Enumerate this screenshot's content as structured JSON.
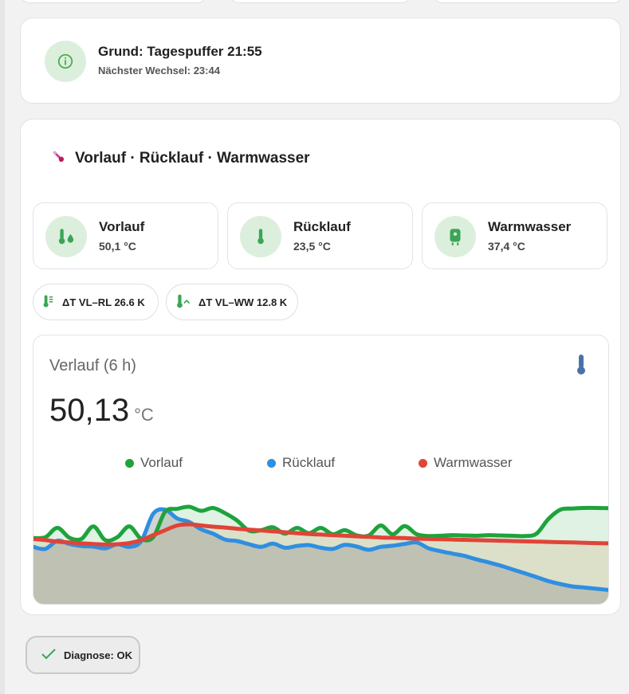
{
  "info": {
    "title": "Grund: Tagespuffer 21:55",
    "subtitle": "Nächster Wechsel: 23:44",
    "icon": "info-icon"
  },
  "section": {
    "title": "Vorlauf · Rücklauf · Warmwasser",
    "icon": "thermometer-icon"
  },
  "tiles": [
    {
      "name": "Vorlauf",
      "value": "50,1 °C",
      "icon": "thermometer-water-icon"
    },
    {
      "name": "Rücklauf",
      "value": "23,5 °C",
      "icon": "thermometer-icon"
    },
    {
      "name": "Warmwasser",
      "value": "37,4 °C",
      "icon": "water-boiler-icon"
    }
  ],
  "chips": [
    {
      "label": "ΔT VL–RL 26.6 K",
      "icon": "thermometer-lines-icon"
    },
    {
      "label": "ΔT VL–WW 12.8 K",
      "icon": "thermometer-chevron-icon"
    }
  ],
  "graph": {
    "title": "Verlauf (6 h)",
    "value": "50,13",
    "unit": "°C",
    "icon": "thermometer-icon"
  },
  "colors": {
    "accent_green": "#4caf50",
    "icon_bg": "#dcefdc",
    "vorlauf": "#1ea33c",
    "ruecklauf": "#2f8fe0",
    "warmwasser": "#e04438"
  },
  "chart_data": {
    "type": "area",
    "title": "Verlauf (6 h)",
    "xlabel": "",
    "ylabel": "",
    "legend_position": "top",
    "grid": false,
    "x": [
      0,
      1,
      2,
      3,
      4,
      5,
      6,
      7,
      8,
      9,
      10,
      11,
      12,
      13,
      14,
      15,
      16,
      17,
      18,
      19,
      20,
      21,
      22,
      23,
      24,
      25,
      26,
      27,
      28,
      29,
      30,
      31,
      32,
      33,
      34,
      35,
      36,
      37,
      38,
      39,
      40,
      41,
      42,
      43,
      44,
      45,
      46,
      47,
      48
    ],
    "series": [
      {
        "name": "Vorlauf",
        "color": "#1ea33c",
        "values": [
          37.5,
          37.8,
          41,
          37.6,
          37.2,
          41.5,
          36.8,
          37.8,
          41.5,
          37.2,
          37.8,
          46.5,
          47.5,
          48.2,
          46.8,
          47.8,
          46,
          43.5,
          40,
          40.2,
          41.2,
          39,
          41,
          39.2,
          41,
          38.8,
          40.2,
          38.4,
          38.4,
          41.8,
          38.8,
          41.6,
          38.8,
          38.2,
          38.3,
          38.5,
          38.4,
          38.3,
          38.5,
          38.4,
          38.3,
          38.2,
          39,
          44,
          47.2,
          47.6,
          47.8,
          47.8,
          47.7
        ]
      },
      {
        "name": "Rücklauf",
        "color": "#2f8fe0",
        "values": [
          34.5,
          33.8,
          36.6,
          35.5,
          34.8,
          34.6,
          34,
          35.4,
          34.5,
          36.5,
          45.8,
          47.2,
          44.2,
          43,
          40.5,
          39,
          37,
          36.5,
          35.4,
          34.5,
          35.6,
          34.2,
          34.8,
          35.1,
          34.2,
          33.8,
          35.2,
          34.6,
          33.5,
          34.5,
          34.9,
          35.5,
          36,
          34,
          33,
          32.2,
          31.4,
          30.2,
          29.2,
          28.1,
          26.8,
          25.5,
          24.2,
          22.8,
          21.8,
          21,
          20.6,
          20.2,
          19.8
        ]
      },
      {
        "name": "Warmwasser",
        "color": "#e04438",
        "values": [
          37.2,
          36.8,
          36.3,
          36,
          35.7,
          35.5,
          35.3,
          35.4,
          35.8,
          36.8,
          38.5,
          40.2,
          41.8,
          42.2,
          41.8,
          41.4,
          41.1,
          40.7,
          40.4,
          40.1,
          39.8,
          39.5,
          39.2,
          38.9,
          38.7,
          38.5,
          38.3,
          38.1,
          37.9,
          37.7,
          37.6,
          37.5,
          37.3,
          37.2,
          37.1,
          37,
          36.9,
          36.8,
          36.7,
          36.6,
          36.5,
          36.4,
          36.3,
          36.2,
          36.1,
          36,
          35.9,
          35.8,
          35.7
        ]
      }
    ],
    "ylim": [
      15,
      55
    ]
  },
  "diagnose": {
    "label": "Diagnose: OK",
    "icon": "check-icon"
  }
}
